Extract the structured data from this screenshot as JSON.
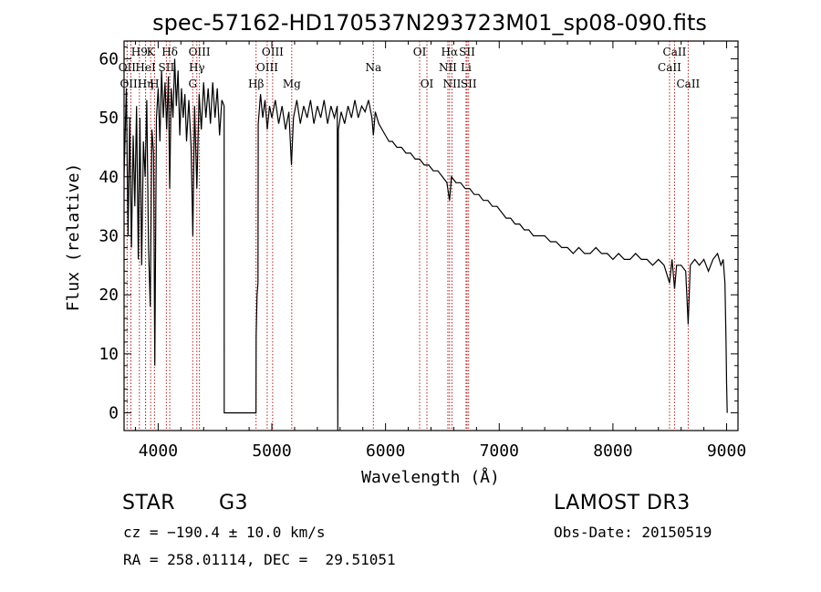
{
  "chart_data": {
    "type": "line",
    "title": "spec-57162-HD170537N293723M01_sp08-090.fits",
    "xlabel": "Wavelength (Å)",
    "ylabel": "Flux (relative)",
    "xlim": [
      3700,
      9100
    ],
    "ylim": [
      -3,
      63
    ],
    "xticks": [
      4000,
      5000,
      6000,
      7000,
      8000,
      9000
    ],
    "yticks": [
      0,
      10,
      20,
      30,
      40,
      50,
      60
    ],
    "series": [
      {
        "name": "flux",
        "points": [
          [
            3700,
            40
          ],
          [
            3720,
            55
          ],
          [
            3735,
            30
          ],
          [
            3750,
            50
          ],
          [
            3765,
            28
          ],
          [
            3780,
            47
          ],
          [
            3795,
            35
          ],
          [
            3810,
            52
          ],
          [
            3825,
            26
          ],
          [
            3840,
            50
          ],
          [
            3855,
            25
          ],
          [
            3870,
            46
          ],
          [
            3885,
            40
          ],
          [
            3900,
            53
          ],
          [
            3915,
            28
          ],
          [
            3930,
            18
          ],
          [
            3945,
            48
          ],
          [
            3960,
            44
          ],
          [
            3970,
            8
          ],
          [
            3985,
            50
          ],
          [
            4000,
            55
          ],
          [
            4015,
            46
          ],
          [
            4030,
            58
          ],
          [
            4045,
            50
          ],
          [
            4060,
            56
          ],
          [
            4075,
            48
          ],
          [
            4090,
            57
          ],
          [
            4101,
            38
          ],
          [
            4115,
            55
          ],
          [
            4130,
            50
          ],
          [
            4145,
            60
          ],
          [
            4160,
            52
          ],
          [
            4175,
            58
          ],
          [
            4190,
            47
          ],
          [
            4205,
            55
          ],
          [
            4220,
            50
          ],
          [
            4235,
            54
          ],
          [
            4250,
            46
          ],
          [
            4270,
            53
          ],
          [
            4290,
            45
          ],
          [
            4305,
            30
          ],
          [
            4320,
            52
          ],
          [
            4340,
            38
          ],
          [
            4360,
            54
          ],
          [
            4380,
            48
          ],
          [
            4400,
            56
          ],
          [
            4420,
            50
          ],
          [
            4440,
            55
          ],
          [
            4460,
            49
          ],
          [
            4480,
            56
          ],
          [
            4500,
            50
          ],
          [
            4520,
            55
          ],
          [
            4540,
            47
          ],
          [
            4560,
            53
          ],
          [
            4580,
            52
          ],
          [
            4581,
            0
          ],
          [
            4860,
            0
          ],
          [
            4862,
            13
          ],
          [
            4870,
            20
          ],
          [
            4878,
            22
          ],
          [
            4880,
            49
          ],
          [
            4900,
            54
          ],
          [
            4920,
            50
          ],
          [
            4940,
            53
          ],
          [
            4960,
            48
          ],
          [
            4980,
            52
          ],
          [
            5000,
            50
          ],
          [
            5030,
            53
          ],
          [
            5060,
            49
          ],
          [
            5090,
            52
          ],
          [
            5120,
            48
          ],
          [
            5150,
            51
          ],
          [
            5172,
            42
          ],
          [
            5190,
            50
          ],
          [
            5220,
            53
          ],
          [
            5250,
            49
          ],
          [
            5280,
            52
          ],
          [
            5310,
            50
          ],
          [
            5340,
            53
          ],
          [
            5370,
            49
          ],
          [
            5400,
            52
          ],
          [
            5430,
            50
          ],
          [
            5460,
            53
          ],
          [
            5490,
            49
          ],
          [
            5520,
            52
          ],
          [
            5550,
            50
          ],
          [
            5575,
            52
          ],
          [
            5580,
            -3
          ],
          [
            5585,
            48
          ],
          [
            5610,
            51
          ],
          [
            5640,
            49
          ],
          [
            5670,
            52
          ],
          [
            5700,
            50
          ],
          [
            5730,
            53
          ],
          [
            5760,
            50
          ],
          [
            5790,
            52
          ],
          [
            5820,
            51
          ],
          [
            5850,
            53
          ],
          [
            5880,
            50
          ],
          [
            5893,
            47
          ],
          [
            5910,
            51
          ],
          [
            5940,
            49
          ],
          [
            5970,
            48
          ],
          [
            6000,
            47
          ],
          [
            6030,
            46
          ],
          [
            6060,
            46
          ],
          [
            6100,
            45
          ],
          [
            6140,
            45
          ],
          [
            6180,
            44
          ],
          [
            6220,
            44
          ],
          [
            6260,
            43
          ],
          [
            6300,
            43
          ],
          [
            6340,
            42
          ],
          [
            6380,
            42
          ],
          [
            6420,
            41
          ],
          [
            6460,
            41
          ],
          [
            6500,
            40
          ],
          [
            6540,
            39
          ],
          [
            6563,
            36
          ],
          [
            6580,
            40
          ],
          [
            6620,
            39
          ],
          [
            6660,
            39
          ],
          [
            6700,
            38
          ],
          [
            6740,
            38
          ],
          [
            6780,
            37
          ],
          [
            6820,
            37
          ],
          [
            6860,
            36
          ],
          [
            6900,
            36
          ],
          [
            6940,
            35
          ],
          [
            6980,
            35
          ],
          [
            7020,
            34
          ],
          [
            7060,
            33
          ],
          [
            7100,
            33
          ],
          [
            7140,
            32
          ],
          [
            7180,
            32
          ],
          [
            7220,
            31
          ],
          [
            7260,
            31
          ],
          [
            7300,
            30
          ],
          [
            7350,
            30
          ],
          [
            7400,
            30
          ],
          [
            7450,
            29
          ],
          [
            7500,
            29
          ],
          [
            7550,
            28
          ],
          [
            7600,
            28
          ],
          [
            7650,
            27
          ],
          [
            7700,
            28
          ],
          [
            7750,
            27
          ],
          [
            7800,
            27
          ],
          [
            7850,
            28
          ],
          [
            7900,
            27
          ],
          [
            7950,
            27
          ],
          [
            8000,
            26
          ],
          [
            8050,
            27
          ],
          [
            8100,
            26
          ],
          [
            8150,
            26
          ],
          [
            8200,
            27
          ],
          [
            8250,
            26
          ],
          [
            8300,
            26
          ],
          [
            8350,
            25
          ],
          [
            8400,
            26
          ],
          [
            8450,
            25
          ],
          [
            8498,
            22
          ],
          [
            8520,
            26
          ],
          [
            8542,
            21
          ],
          [
            8560,
            25
          ],
          [
            8600,
            25
          ],
          [
            8640,
            24
          ],
          [
            8662,
            15
          ],
          [
            8680,
            25
          ],
          [
            8720,
            26
          ],
          [
            8760,
            25
          ],
          [
            8800,
            26
          ],
          [
            8840,
            24
          ],
          [
            8880,
            26
          ],
          [
            8920,
            27
          ],
          [
            8950,
            25
          ],
          [
            8970,
            26
          ],
          [
            8985,
            22
          ],
          [
            8995,
            12
          ],
          [
            9000,
            5
          ],
          [
            9005,
            0
          ]
        ]
      }
    ],
    "line_markers": [
      {
        "label": "H9",
        "x": 3835,
        "row": 1
      },
      {
        "label": "OII",
        "x": 3727,
        "row": 2
      },
      {
        "label": "OIII",
        "x": 3760,
        "row": 3
      },
      {
        "label": "K",
        "x": 3934,
        "row": 1
      },
      {
        "label": "HeI",
        "x": 3889,
        "row": 2
      },
      {
        "label": "Hη",
        "x": 3889,
        "row": 3
      },
      {
        "label": "SII",
        "x": 4072,
        "row": 2
      },
      {
        "label": "H",
        "x": 3968,
        "row": 3
      },
      {
        "label": "Hδ",
        "x": 4102,
        "row": 1
      },
      {
        "label": "OIII",
        "x": 4363,
        "row": 1
      },
      {
        "label": "Hγ",
        "x": 4340,
        "row": 2
      },
      {
        "label": "G",
        "x": 4304,
        "row": 3
      },
      {
        "label": "OIII",
        "x": 5007,
        "row": 1
      },
      {
        "label": "OIII",
        "x": 4959,
        "row": 2
      },
      {
        "label": "Hβ",
        "x": 4861,
        "row": 3
      },
      {
        "label": "Mg",
        "x": 5175,
        "row": 3
      },
      {
        "label": "Na",
        "x": 5893,
        "row": 2
      },
      {
        "label": "OI",
        "x": 6300,
        "row": 1
      },
      {
        "label": "OI",
        "x": 6364,
        "row": 3
      },
      {
        "label": "Hα",
        "x": 6563,
        "row": 1
      },
      {
        "label": "SII",
        "x": 6717,
        "row": 1
      },
      {
        "label": "NII",
        "x": 6548,
        "row": 2
      },
      {
        "label": "Li",
        "x": 6708,
        "row": 2
      },
      {
        "label": "NII",
        "x": 6584,
        "row": 3
      },
      {
        "label": "SII",
        "x": 6731,
        "row": 3
      },
      {
        "label": "CaII",
        "x": 8542,
        "row": 1
      },
      {
        "label": "CaII",
        "x": 8498,
        "row": 2
      },
      {
        "label": "CaII",
        "x": 8662,
        "row": 3
      }
    ]
  },
  "info": {
    "object_type": "STAR",
    "subclass": "G3",
    "survey": "LAMOST DR3",
    "cz": "cz = −190.4 ± 10.0 km/s",
    "obs_date": "Obs-Date: 20150519",
    "coords": "RA = 258.01114, DEC =  29.51051"
  },
  "colors": {
    "axis": "#000000",
    "marker": "#b22222"
  }
}
